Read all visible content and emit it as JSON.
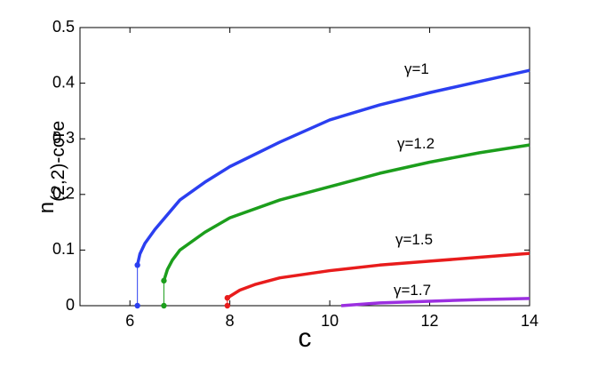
{
  "chart_data": {
    "type": "line",
    "xlabel": "c",
    "ylabel": "n",
    "ylabel_sub": "(2,2)-core",
    "xlim": [
      5,
      14
    ],
    "xticks": [
      6,
      8,
      10,
      12,
      14
    ],
    "ylim": [
      0,
      0.5
    ],
    "yticks": [
      0,
      0.1,
      0.2,
      0.3,
      0.4,
      0.5
    ],
    "series": [
      {
        "name": "γ=1",
        "color": "#2b3ff0",
        "x": [
          6.15,
          6.15,
          6.2,
          6.3,
          6.5,
          7,
          7.5,
          8,
          9,
          10,
          11,
          12,
          13,
          14
        ],
        "values": [
          0,
          0.073,
          0.093,
          0.112,
          0.137,
          0.19,
          0.222,
          0.25,
          0.294,
          0.334,
          0.361,
          0.383,
          0.403,
          0.423
        ]
      },
      {
        "name": "γ=1.2",
        "color": "#1c9e1c",
        "x": [
          6.68,
          6.68,
          6.75,
          6.85,
          7,
          7.5,
          8,
          9,
          10,
          11,
          12,
          13,
          14
        ],
        "values": [
          0,
          0.045,
          0.065,
          0.082,
          0.1,
          0.132,
          0.158,
          0.19,
          0.214,
          0.238,
          0.258,
          0.275,
          0.289
        ]
      },
      {
        "name": "γ=1.5",
        "color": "#e81c1c",
        "x": [
          7.95,
          7.95,
          8.2,
          8.5,
          9,
          10,
          11,
          12,
          13,
          14
        ],
        "values": [
          0,
          0.014,
          0.028,
          0.038,
          0.05,
          0.063,
          0.073,
          0.08,
          0.087,
          0.094
        ]
      },
      {
        "name": "γ=1.7",
        "color": "#9b2fe0",
        "x": [
          10.23,
          11,
          12,
          13,
          14
        ],
        "values": [
          0,
          0.005,
          0.008,
          0.011,
          0.013
        ]
      }
    ]
  }
}
